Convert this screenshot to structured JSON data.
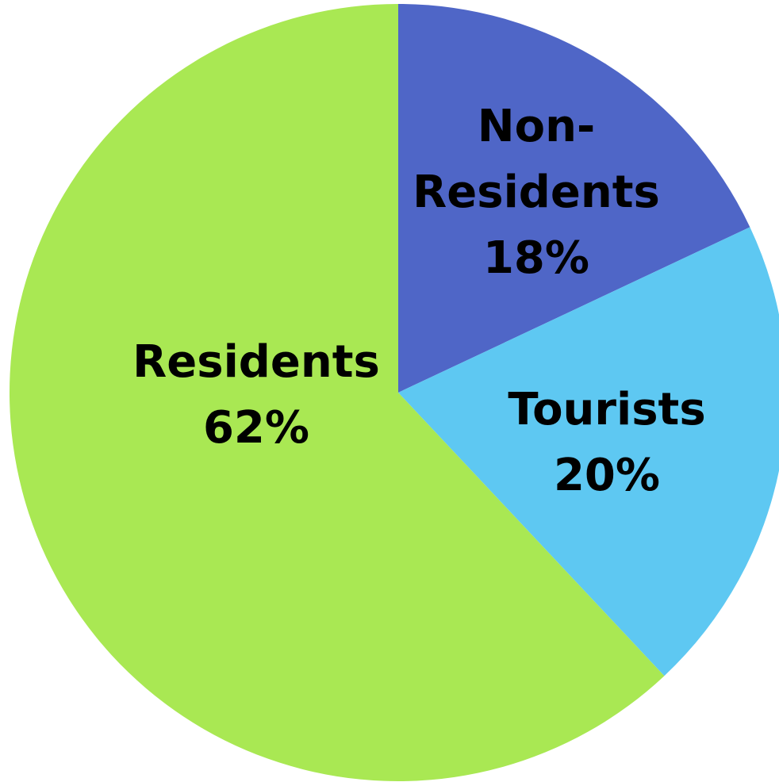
{
  "chart_data": {
    "type": "pie",
    "slices": [
      {
        "label_lines": [
          "Non-",
          "Residents"
        ],
        "pct_label": "18%",
        "value": 18,
        "color": "#4f66c7"
      },
      {
        "label_lines": [
          "Tourists"
        ],
        "pct_label": "20%",
        "value": 20,
        "color": "#5ec8f2"
      },
      {
        "label_lines": [
          "Residents"
        ],
        "pct_label": "62%",
        "value": 62,
        "color": "#a9e853"
      }
    ],
    "start_angle": "12 o'clock",
    "direction": "clockwise"
  }
}
